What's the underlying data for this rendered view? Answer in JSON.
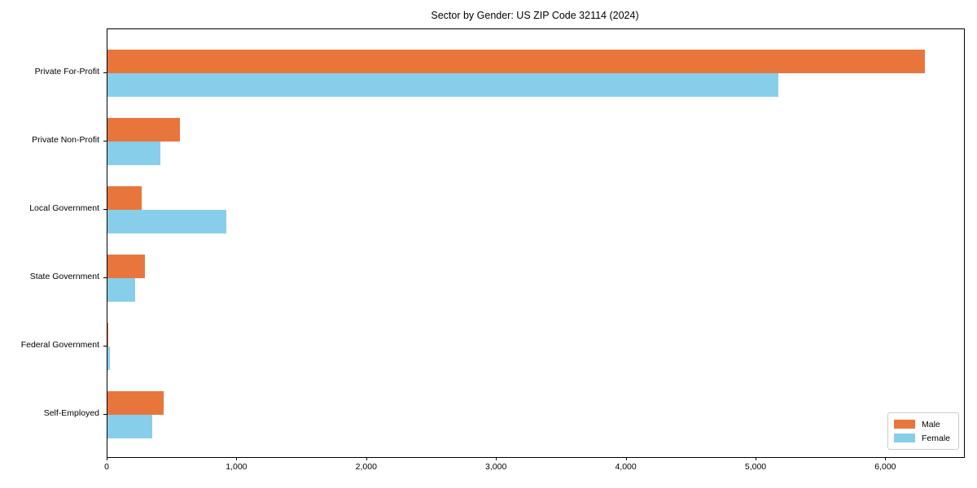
{
  "title": "Sector by Gender: US ZIP Code 32114 (2024)",
  "colors": {
    "male": "#e8763c",
    "female": "#87ceeb",
    "axis": "#000000",
    "legend_border": "#cccccc",
    "background": "#ffffff"
  },
  "legend": {
    "items": [
      {
        "label": "Male",
        "color": "#e8763c"
      },
      {
        "label": "Female",
        "color": "#87ceeb"
      }
    ],
    "position": "lower right"
  },
  "chart_data": {
    "type": "bar",
    "orientation": "horizontal",
    "title": "Sector by Gender: US ZIP Code 32114 (2024)",
    "categories": [
      "Private For-Profit",
      "Private Non-Profit",
      "Local Government",
      "State Government",
      "Federal Government",
      "Self-Employed"
    ],
    "series": [
      {
        "name": "Male",
        "color": "#e8763c",
        "values": [
          6300,
          560,
          265,
          290,
          8,
          435
        ]
      },
      {
        "name": "Female",
        "color": "#87ceeb",
        "values": [
          5170,
          410,
          915,
          215,
          20,
          345
        ]
      }
    ],
    "xlabel": "",
    "ylabel": "",
    "xlim": [
      0,
      6600
    ],
    "xticks": [
      0,
      1000,
      2000,
      3000,
      4000,
      5000,
      6000
    ],
    "xtick_labels": [
      "0",
      "1,000",
      "2,000",
      "3,000",
      "4,000",
      "5,000",
      "6,000"
    ],
    "grid": false,
    "legend_position": "lower right"
  }
}
